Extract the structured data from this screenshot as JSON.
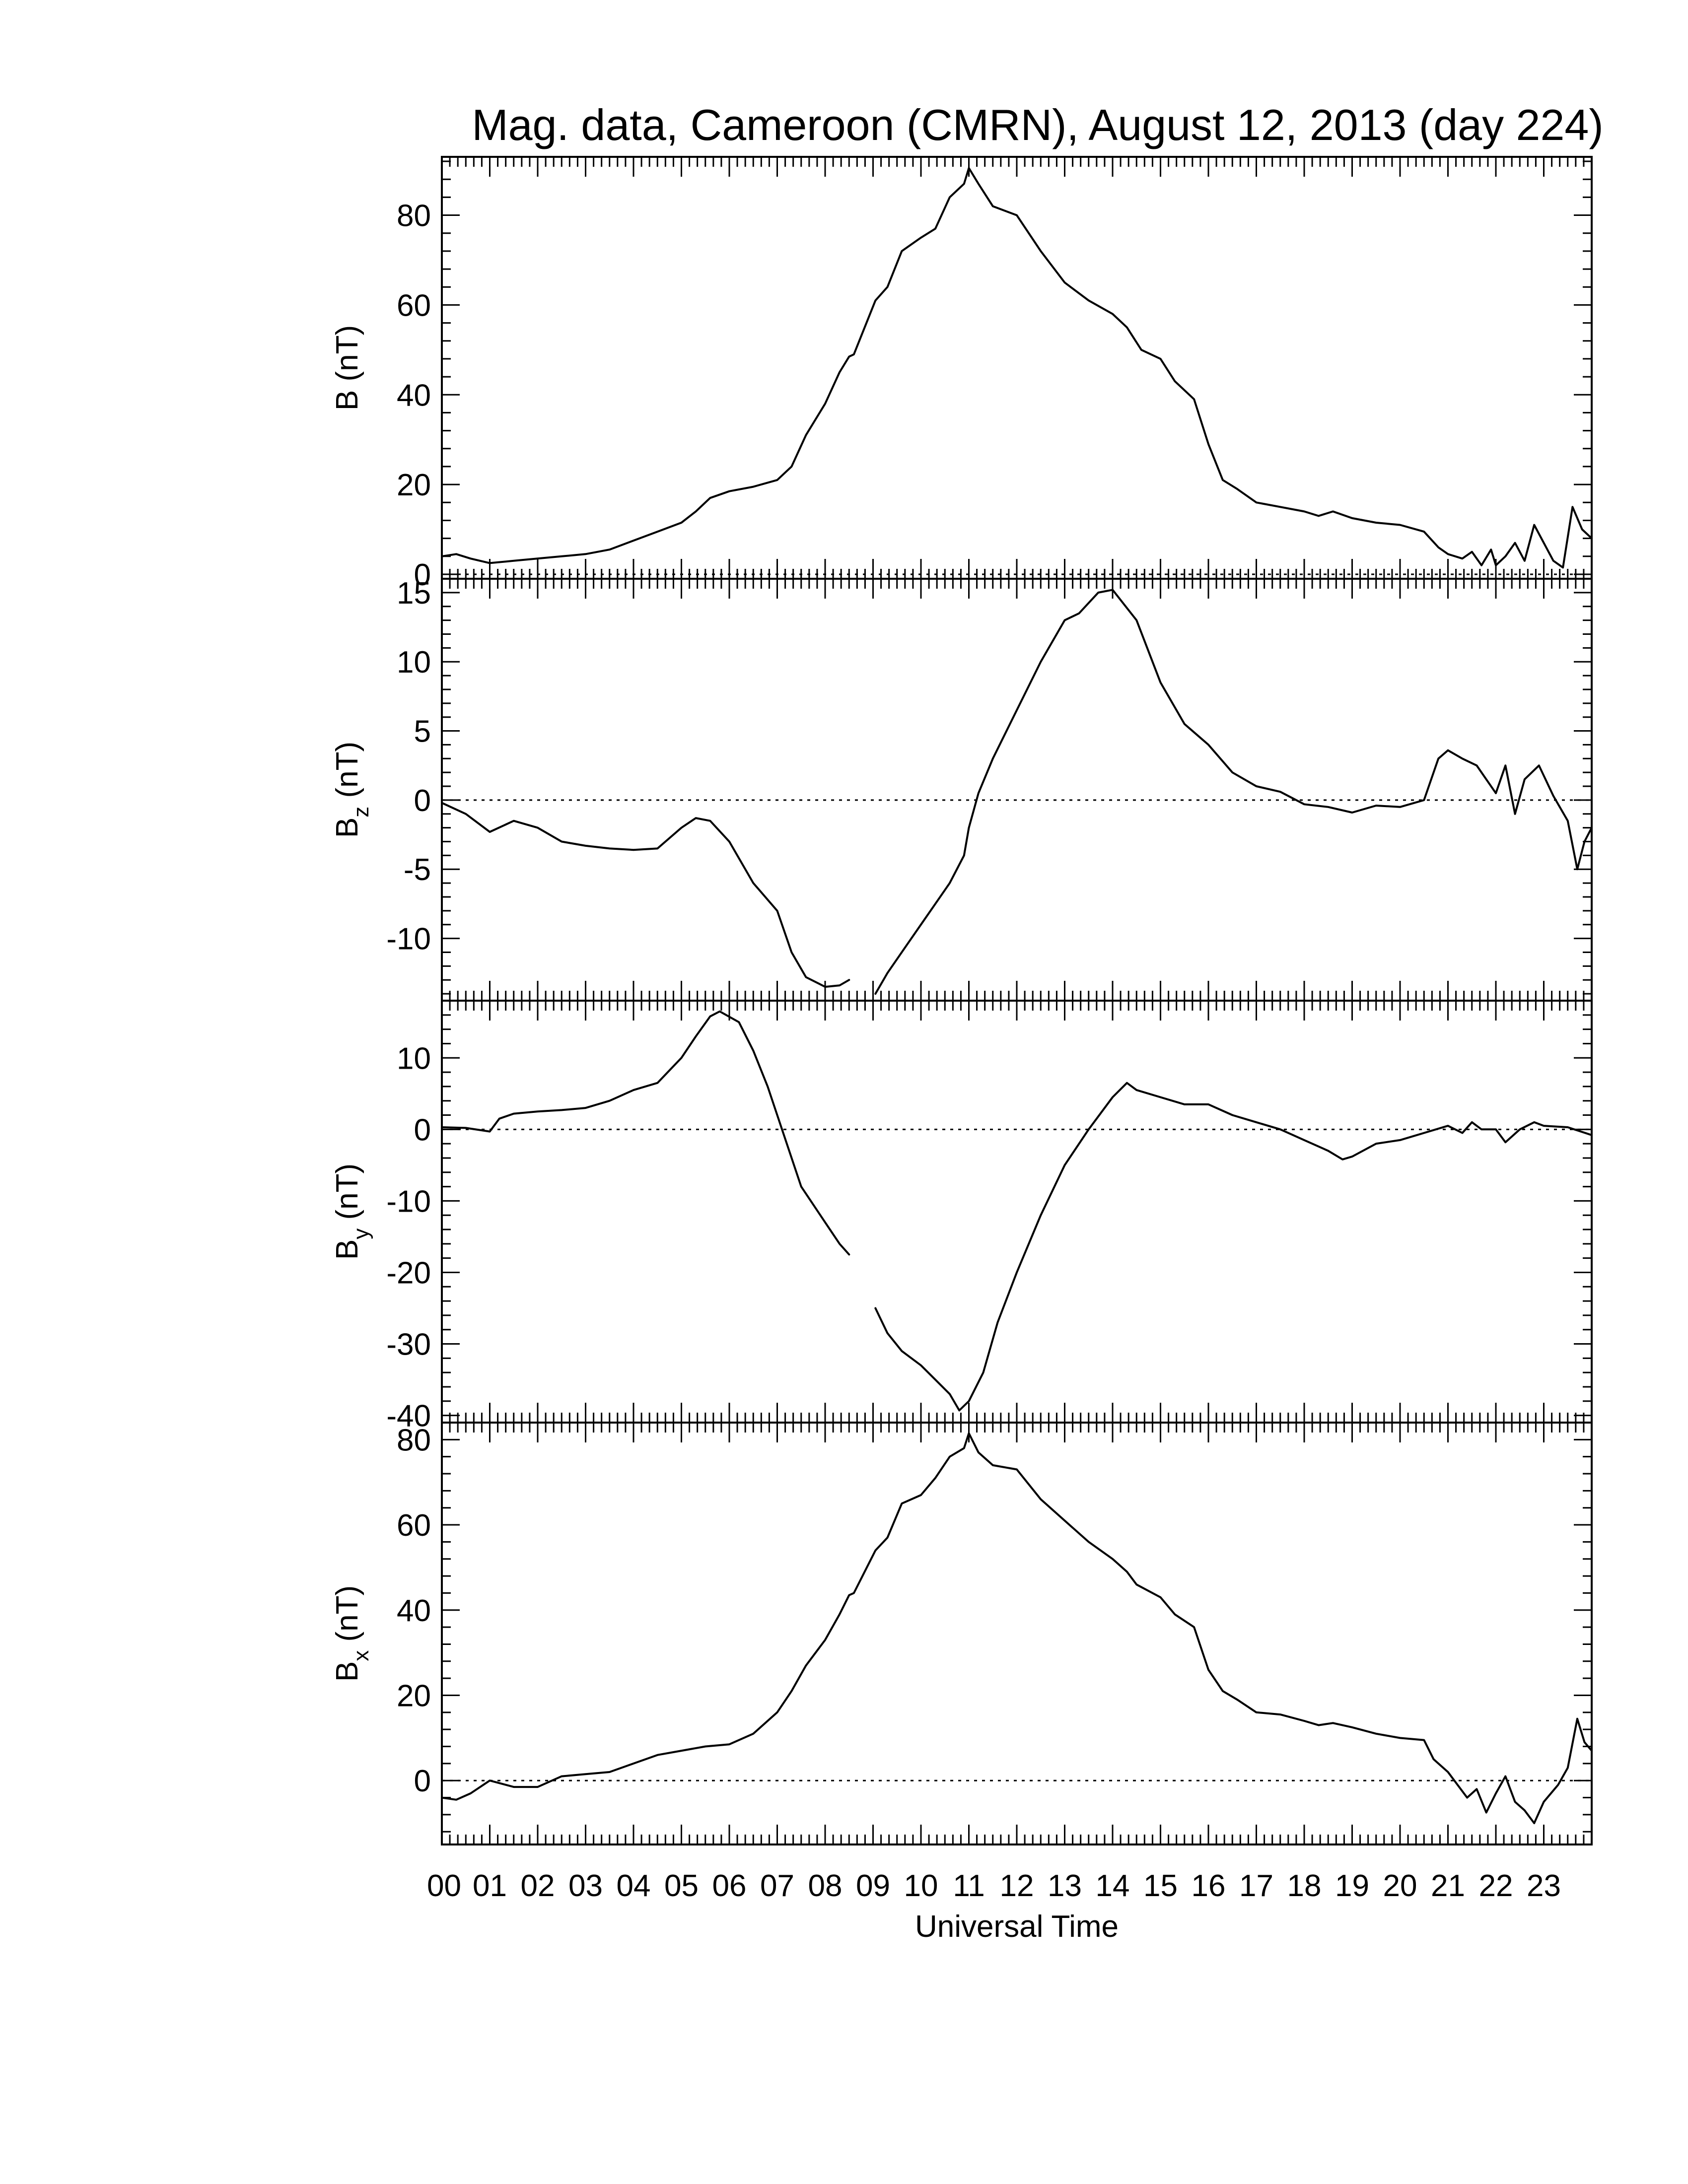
{
  "chart_data": {
    "type": "line",
    "title": "Mag. data, Cameroon (CMRN), August 12, 2013 (day 224)",
    "xlabel": "Universal Time",
    "x_ticks": [
      "00",
      "01",
      "02",
      "03",
      "04",
      "05",
      "06",
      "07",
      "08",
      "09",
      "10",
      "11",
      "12",
      "13",
      "14",
      "15",
      "16",
      "17",
      "18",
      "19",
      "20",
      "21",
      "22",
      "23"
    ],
    "xlim": [
      0,
      24
    ],
    "x_unit": "hours UT",
    "panels": [
      {
        "id": "B",
        "ylabel": "B (nT)",
        "ylabel_main": "B",
        "ylabel_sub": "",
        "ylabel_unit": "(nT)",
        "ylim": [
          -1,
          93
        ],
        "yticks": [
          0,
          20,
          40,
          60,
          80
        ],
        "zero_line": true,
        "gap": [
          8.5,
          9.05
        ],
        "points": [
          [
            0,
            4
          ],
          [
            0.3,
            4.5
          ],
          [
            0.6,
            3.5
          ],
          [
            1,
            2.5
          ],
          [
            1.5,
            3
          ],
          [
            2,
            3.5
          ],
          [
            2.5,
            4
          ],
          [
            3,
            4.5
          ],
          [
            3.5,
            5.5
          ],
          [
            4,
            7.5
          ],
          [
            4.5,
            9.5
          ],
          [
            5,
            11.5
          ],
          [
            5.3,
            14
          ],
          [
            5.6,
            17
          ],
          [
            6,
            18.5
          ],
          [
            6.5,
            19.5
          ],
          [
            7,
            21
          ],
          [
            7.3,
            24
          ],
          [
            7.6,
            31
          ],
          [
            8,
            38
          ],
          [
            8.3,
            45
          ],
          [
            8.5,
            48.5
          ],
          [
            8.6,
            49
          ],
          [
            9.05,
            61
          ],
          [
            9.3,
            64
          ],
          [
            9.6,
            72
          ],
          [
            10,
            75
          ],
          [
            10.3,
            77
          ],
          [
            10.6,
            84
          ],
          [
            10.9,
            87
          ],
          [
            11,
            90.5
          ],
          [
            11.2,
            87
          ],
          [
            11.5,
            82
          ],
          [
            12,
            80
          ],
          [
            12.5,
            72
          ],
          [
            13,
            65
          ],
          [
            13.5,
            61
          ],
          [
            14,
            58
          ],
          [
            14.3,
            55
          ],
          [
            14.6,
            50
          ],
          [
            15,
            48
          ],
          [
            15.3,
            43
          ],
          [
            15.7,
            39
          ],
          [
            16,
            29
          ],
          [
            16.3,
            21
          ],
          [
            16.6,
            19
          ],
          [
            17,
            16
          ],
          [
            17.5,
            15
          ],
          [
            18,
            14
          ],
          [
            18.3,
            13
          ],
          [
            18.6,
            14
          ],
          [
            19,
            12.5
          ],
          [
            19.5,
            11.5
          ],
          [
            20,
            11
          ],
          [
            20.5,
            9.5
          ],
          [
            20.8,
            6
          ],
          [
            21,
            4.5
          ],
          [
            21.3,
            3.5
          ],
          [
            21.5,
            5
          ],
          [
            21.7,
            2
          ],
          [
            21.9,
            5.5
          ],
          [
            22,
            2
          ],
          [
            22.2,
            4
          ],
          [
            22.4,
            7
          ],
          [
            22.6,
            3
          ],
          [
            22.8,
            11
          ],
          [
            23,
            7
          ],
          [
            23.2,
            3
          ],
          [
            23.4,
            1.5
          ],
          [
            23.6,
            15
          ],
          [
            23.8,
            10
          ],
          [
            24,
            8
          ]
        ]
      },
      {
        "id": "Bz",
        "ylabel": "Bz (nT)",
        "ylabel_main": "B",
        "ylabel_sub": "z",
        "ylabel_unit": "(nT)",
        "ylim": [
          -14.5,
          16
        ],
        "yticks": [
          -10,
          -5,
          0,
          5,
          10,
          15
        ],
        "zero_line": true,
        "gap": [
          8.5,
          9.05
        ],
        "points": [
          [
            0,
            -0.2
          ],
          [
            0.5,
            -1
          ],
          [
            1,
            -2.3
          ],
          [
            1.5,
            -1.5
          ],
          [
            2,
            -2
          ],
          [
            2.5,
            -3
          ],
          [
            3,
            -3.3
          ],
          [
            3.5,
            -3.5
          ],
          [
            4,
            -3.6
          ],
          [
            4.5,
            -3.5
          ],
          [
            5,
            -2
          ],
          [
            5.3,
            -1.3
          ],
          [
            5.6,
            -1.5
          ],
          [
            6,
            -3
          ],
          [
            6.5,
            -6
          ],
          [
            7,
            -8
          ],
          [
            7.3,
            -11
          ],
          [
            7.6,
            -12.8
          ],
          [
            8,
            -13.5
          ],
          [
            8.3,
            -13.4
          ],
          [
            8.5,
            -13
          ],
          [
            9.05,
            -14
          ],
          [
            9.3,
            -12.5
          ],
          [
            9.7,
            -10.5
          ],
          [
            10,
            -9
          ],
          [
            10.3,
            -7.5
          ],
          [
            10.6,
            -6
          ],
          [
            10.9,
            -4
          ],
          [
            11,
            -2
          ],
          [
            11.2,
            0.5
          ],
          [
            11.5,
            3
          ],
          [
            12,
            6.5
          ],
          [
            12.5,
            10
          ],
          [
            13,
            13
          ],
          [
            13.3,
            13.5
          ],
          [
            13.7,
            15
          ],
          [
            14,
            15.2
          ],
          [
            14.5,
            13
          ],
          [
            15,
            8.5
          ],
          [
            15.5,
            5.5
          ],
          [
            16,
            4
          ],
          [
            16.5,
            2
          ],
          [
            17,
            1
          ],
          [
            17.5,
            0.6
          ],
          [
            18,
            -0.3
          ],
          [
            18.5,
            -0.5
          ],
          [
            19,
            -0.9
          ],
          [
            19.5,
            -0.4
          ],
          [
            20,
            -0.5
          ],
          [
            20.5,
            0
          ],
          [
            20.8,
            3
          ],
          [
            21,
            3.6
          ],
          [
            21.3,
            3
          ],
          [
            21.6,
            2.5
          ],
          [
            21.8,
            1.5
          ],
          [
            22,
            0.5
          ],
          [
            22.2,
            2.5
          ],
          [
            22.4,
            -1
          ],
          [
            22.6,
            1.5
          ],
          [
            22.9,
            2.5
          ],
          [
            23.2,
            0.3
          ],
          [
            23.5,
            -1.5
          ],
          [
            23.7,
            -5
          ],
          [
            23.85,
            -3
          ],
          [
            24,
            -2
          ]
        ]
      },
      {
        "id": "By",
        "ylabel": "By (nT)",
        "ylabel_main": "B",
        "ylabel_sub": "y",
        "ylabel_unit": "(nT)",
        "ylim": [
          -41,
          18
        ],
        "yticks": [
          -40,
          -30,
          -20,
          -10,
          0,
          10
        ],
        "zero_line": true,
        "gap": [
          8.5,
          9.05
        ],
        "points": [
          [
            0,
            0.3
          ],
          [
            0.5,
            0.2
          ],
          [
            1,
            -0.3
          ],
          [
            1.2,
            1.5
          ],
          [
            1.5,
            2.2
          ],
          [
            2,
            2.5
          ],
          [
            2.5,
            2.7
          ],
          [
            3,
            3
          ],
          [
            3.5,
            4
          ],
          [
            4,
            5.5
          ],
          [
            4.5,
            6.5
          ],
          [
            5,
            10
          ],
          [
            5.3,
            13
          ],
          [
            5.6,
            15.8
          ],
          [
            5.8,
            16.5
          ],
          [
            6.2,
            15
          ],
          [
            6.5,
            11
          ],
          [
            6.8,
            6
          ],
          [
            7,
            2
          ],
          [
            7.2,
            -2
          ],
          [
            7.5,
            -8
          ],
          [
            8,
            -13
          ],
          [
            8.3,
            -16
          ],
          [
            8.5,
            -17.5
          ],
          [
            9.05,
            -25
          ],
          [
            9.3,
            -28.5
          ],
          [
            9.6,
            -31
          ],
          [
            10,
            -33
          ],
          [
            10.3,
            -35
          ],
          [
            10.6,
            -37
          ],
          [
            10.8,
            -39.3
          ],
          [
            11,
            -38
          ],
          [
            11.3,
            -34
          ],
          [
            11.6,
            -27
          ],
          [
            12,
            -20
          ],
          [
            12.5,
            -12
          ],
          [
            13,
            -5
          ],
          [
            13.5,
            0
          ],
          [
            14,
            4.5
          ],
          [
            14.3,
            6.5
          ],
          [
            14.5,
            5.5
          ],
          [
            15,
            4.5
          ],
          [
            15.5,
            3.5
          ],
          [
            16,
            3.5
          ],
          [
            16.5,
            2
          ],
          [
            17,
            1
          ],
          [
            17.5,
            0
          ],
          [
            18,
            -1.5
          ],
          [
            18.5,
            -3
          ],
          [
            18.8,
            -4.2
          ],
          [
            19,
            -3.8
          ],
          [
            19.5,
            -2
          ],
          [
            20,
            -1.5
          ],
          [
            20.5,
            -0.5
          ],
          [
            21,
            0.5
          ],
          [
            21.3,
            -0.5
          ],
          [
            21.5,
            1
          ],
          [
            21.7,
            0
          ],
          [
            22,
            0
          ],
          [
            22.2,
            -1.8
          ],
          [
            22.5,
            0
          ],
          [
            22.8,
            1
          ],
          [
            23,
            0.5
          ],
          [
            23.5,
            0.3
          ],
          [
            24,
            -0.8
          ]
        ]
      },
      {
        "id": "Bx",
        "ylabel": "Bx (nT)",
        "ylabel_main": "B",
        "ylabel_sub": "x",
        "ylabel_unit": "(nT)",
        "ylim": [
          -15,
          84
        ],
        "yticks": [
          0,
          20,
          40,
          60,
          80
        ],
        "zero_line": true,
        "gap": [
          8.5,
          9.05
        ],
        "points": [
          [
            0,
            -4
          ],
          [
            0.3,
            -4.5
          ],
          [
            0.6,
            -3
          ],
          [
            1,
            0
          ],
          [
            1.5,
            -1.5
          ],
          [
            2,
            -1.5
          ],
          [
            2.5,
            1
          ],
          [
            3,
            1.5
          ],
          [
            3.5,
            2
          ],
          [
            4,
            4
          ],
          [
            4.5,
            6
          ],
          [
            5,
            7
          ],
          [
            5.5,
            8
          ],
          [
            6,
            8.5
          ],
          [
            6.5,
            11
          ],
          [
            7,
            16
          ],
          [
            7.3,
            21
          ],
          [
            7.6,
            27
          ],
          [
            8,
            33
          ],
          [
            8.3,
            39
          ],
          [
            8.5,
            43.5
          ],
          [
            8.6,
            44
          ],
          [
            9.05,
            54
          ],
          [
            9.3,
            57
          ],
          [
            9.6,
            65
          ],
          [
            10,
            67
          ],
          [
            10.3,
            71
          ],
          [
            10.6,
            76
          ],
          [
            10.9,
            78
          ],
          [
            11,
            81.5
          ],
          [
            11.2,
            77
          ],
          [
            11.5,
            74
          ],
          [
            12,
            73
          ],
          [
            12.5,
            66
          ],
          [
            13,
            61
          ],
          [
            13.5,
            56
          ],
          [
            14,
            52
          ],
          [
            14.3,
            49
          ],
          [
            14.5,
            46
          ],
          [
            15,
            43
          ],
          [
            15.3,
            39
          ],
          [
            15.7,
            36
          ],
          [
            16,
            26
          ],
          [
            16.3,
            21
          ],
          [
            16.6,
            19
          ],
          [
            17,
            16
          ],
          [
            17.5,
            15.5
          ],
          [
            18,
            14
          ],
          [
            18.3,
            13
          ],
          [
            18.6,
            13.5
          ],
          [
            19,
            12.5
          ],
          [
            19.5,
            11
          ],
          [
            20,
            10
          ],
          [
            20.5,
            9.5
          ],
          [
            20.7,
            5
          ],
          [
            21,
            2
          ],
          [
            21.2,
            -1
          ],
          [
            21.4,
            -4
          ],
          [
            21.6,
            -2
          ],
          [
            21.8,
            -7.5
          ],
          [
            22,
            -3
          ],
          [
            22.2,
            1
          ],
          [
            22.4,
            -5
          ],
          [
            22.6,
            -7
          ],
          [
            22.8,
            -10
          ],
          [
            23,
            -5
          ],
          [
            23.3,
            -1
          ],
          [
            23.5,
            3
          ],
          [
            23.7,
            14.5
          ],
          [
            23.85,
            9
          ],
          [
            24,
            7
          ]
        ]
      }
    ]
  }
}
